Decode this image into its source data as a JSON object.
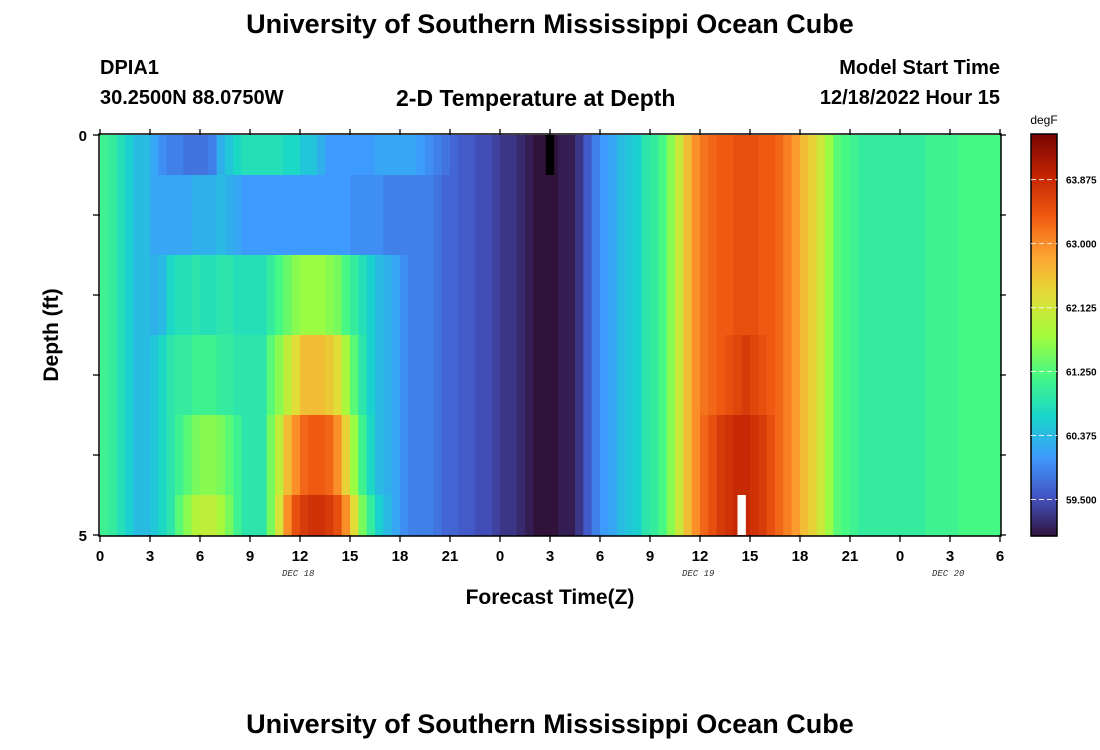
{
  "header": {
    "title": "University of Southern Mississippi Ocean Cube",
    "station_id": "DPIA1",
    "station_coords": "30.2500N  88.0750W",
    "subtitle": "2-D Temperature at Depth",
    "model_label": "Model Start Time",
    "model_time": "12/18/2022 Hour 15"
  },
  "footer": {
    "title": "University of Southern Mississippi Ocean Cube"
  },
  "chart_data": {
    "type": "heatmap",
    "title": "2-D Temperature at Depth",
    "xlabel": "Forecast Time(Z)",
    "ylabel": "Depth (ft)",
    "colorbar_unit": "degF",
    "colorbar_ticks": [
      "63.875",
      "63.000",
      "62.125",
      "61.250",
      "60.375",
      "59.500"
    ],
    "colorbar_tick_values": [
      63.875,
      63.0,
      62.125,
      61.25,
      60.375,
      59.5
    ],
    "color_range": [
      59.0,
      64.5
    ],
    "colormap": [
      "#30123b",
      "#4454c4",
      "#3e9bfe",
      "#18d6cb",
      "#46f884",
      "#a2fc3c",
      "#e1dd37",
      "#fea331",
      "#ef5911",
      "#c22402",
      "#7a0403"
    ],
    "x_tick_labels": [
      "0",
      "3",
      "6",
      "9",
      "12",
      "15",
      "18",
      "21",
      "0",
      "3",
      "6",
      "9",
      "12",
      "15",
      "18",
      "21",
      "0",
      "3",
      "6"
    ],
    "x_range_hours": [
      0,
      54
    ],
    "date_labels": [
      {
        "text": "DEC 18",
        "hour": 12
      },
      {
        "text": "DEC 19",
        "hour": 36
      },
      {
        "text": "DEC 20",
        "hour": 51
      }
    ],
    "y_tick_labels": [
      "0",
      "5"
    ],
    "y_range": [
      0,
      5
    ],
    "depth_levels": [
      "0-0.5",
      "0.5-1.5",
      "1.5-2.5",
      "2.5-3.5",
      "3.5-4.5",
      "4.5-5"
    ],
    "anomalies": [
      {
        "hour_start": 26.75,
        "hour_end": 27.25,
        "row": 0,
        "color": "#000000"
      },
      {
        "hour_start": 38.25,
        "hour_end": 38.75,
        "row": 5,
        "color": "#ffffff"
      }
    ],
    "values": [
      [
        61.1,
        61.0,
        60.8,
        60.6,
        60.4,
        60.4,
        60.2,
        60.0,
        59.9,
        59.9,
        59.8,
        59.8,
        59.8,
        59.9,
        60.3,
        60.5,
        60.7,
        60.8,
        60.8,
        60.8,
        60.8,
        60.8,
        60.7,
        60.7,
        60.5,
        60.5,
        60.3,
        60.1,
        60.1,
        60.1,
        60.1,
        60.1,
        60.1,
        60.2,
        60.2,
        60.2,
        60.2,
        60.2,
        60.1,
        60.0,
        59.9,
        59.8,
        59.7,
        59.6,
        59.6,
        59.5,
        59.5,
        59.4,
        59.3,
        59.3,
        59.2,
        59.1,
        59.0,
        59.0,
        59.0,
        59.1,
        59.1,
        59.3,
        59.6,
        59.9,
        60.1,
        60.2,
        60.4,
        60.5,
        60.6,
        60.9,
        61.0,
        61.2,
        61.6,
        62.1,
        62.6,
        63.0,
        63.2,
        63.3,
        63.4,
        63.4,
        63.5,
        63.5,
        63.5,
        63.4,
        63.4,
        63.3,
        63.1,
        62.9,
        62.6,
        62.4,
        62.1,
        61.7,
        61.3,
        61.2,
        61.1,
        61.0,
        61.0,
        61.0,
        61.0,
        61.0,
        61.0,
        61.0,
        61.0,
        61.1,
        61.1,
        61.1,
        61.1,
        61.2,
        61.2,
        61.2,
        61.2,
        61.2
      ],
      [
        61.1,
        61.0,
        60.8,
        60.6,
        60.4,
        60.4,
        60.2,
        60.2,
        60.2,
        60.2,
        60.2,
        60.3,
        60.3,
        60.3,
        60.4,
        60.3,
        60.2,
        60.1,
        60.1,
        60.1,
        60.1,
        60.1,
        60.1,
        60.1,
        60.1,
        60.1,
        60.1,
        60.1,
        60.1,
        60.1,
        60.0,
        60.0,
        60.0,
        60.0,
        59.9,
        59.9,
        59.9,
        59.9,
        59.9,
        59.9,
        59.8,
        59.7,
        59.7,
        59.6,
        59.6,
        59.5,
        59.5,
        59.4,
        59.3,
        59.3,
        59.2,
        59.1,
        59.0,
        59.0,
        59.0,
        59.1,
        59.1,
        59.3,
        59.6,
        59.9,
        60.1,
        60.2,
        60.4,
        60.5,
        60.6,
        60.9,
        61.0,
        61.2,
        61.6,
        62.1,
        62.6,
        63.0,
        63.2,
        63.3,
        63.4,
        63.4,
        63.5,
        63.5,
        63.5,
        63.4,
        63.4,
        63.3,
        63.1,
        62.9,
        62.6,
        62.4,
        62.1,
        61.7,
        61.3,
        61.2,
        61.1,
        61.0,
        61.0,
        61.0,
        61.0,
        61.0,
        61.0,
        61.0,
        61.0,
        61.1,
        61.1,
        61.1,
        61.1,
        61.2,
        61.2,
        61.2,
        61.2,
        61.2
      ],
      [
        61.1,
        61.0,
        60.8,
        60.6,
        60.4,
        60.4,
        60.3,
        60.4,
        60.7,
        60.8,
        60.8,
        60.9,
        60.8,
        60.8,
        60.9,
        60.9,
        60.8,
        60.8,
        60.8,
        60.8,
        61.0,
        61.2,
        61.4,
        61.6,
        61.7,
        61.7,
        61.7,
        61.6,
        61.5,
        61.2,
        61.0,
        60.8,
        60.6,
        60.4,
        60.3,
        60.2,
        60.0,
        59.9,
        59.9,
        59.9,
        59.8,
        59.7,
        59.7,
        59.6,
        59.6,
        59.5,
        59.5,
        59.4,
        59.3,
        59.3,
        59.2,
        59.1,
        59.0,
        59.0,
        59.0,
        59.1,
        59.1,
        59.3,
        59.6,
        59.9,
        60.1,
        60.2,
        60.4,
        60.5,
        60.6,
        60.9,
        61.0,
        61.2,
        61.6,
        62.1,
        62.6,
        63.0,
        63.2,
        63.3,
        63.4,
        63.4,
        63.5,
        63.5,
        63.5,
        63.4,
        63.4,
        63.3,
        63.1,
        62.9,
        62.6,
        62.4,
        62.1,
        61.7,
        61.3,
        61.2,
        61.1,
        61.0,
        61.0,
        61.0,
        61.0,
        61.0,
        61.0,
        61.0,
        61.0,
        61.1,
        61.1,
        61.1,
        61.1,
        61.2,
        61.2,
        61.2,
        61.2,
        61.2
      ],
      [
        61.1,
        61.0,
        60.8,
        60.6,
        60.4,
        60.4,
        60.5,
        60.7,
        60.9,
        61.0,
        61.0,
        61.1,
        61.1,
        61.1,
        61.0,
        61.0,
        60.9,
        60.9,
        60.9,
        60.9,
        61.3,
        61.6,
        62.0,
        62.3,
        62.6,
        62.6,
        62.6,
        62.5,
        62.3,
        61.8,
        61.3,
        60.9,
        60.6,
        60.4,
        60.3,
        60.2,
        60.0,
        59.9,
        59.9,
        59.9,
        59.8,
        59.7,
        59.7,
        59.6,
        59.6,
        59.5,
        59.5,
        59.4,
        59.3,
        59.3,
        59.2,
        59.1,
        59.0,
        59.0,
        59.0,
        59.1,
        59.1,
        59.3,
        59.6,
        59.9,
        60.1,
        60.2,
        60.4,
        60.5,
        60.6,
        60.9,
        61.0,
        61.2,
        61.6,
        62.1,
        62.6,
        63.0,
        63.2,
        63.3,
        63.4,
        63.5,
        63.6,
        63.7,
        63.6,
        63.5,
        63.4,
        63.3,
        63.1,
        62.9,
        62.6,
        62.4,
        62.1,
        61.7,
        61.3,
        61.2,
        61.1,
        61.0,
        61.0,
        61.0,
        61.0,
        61.0,
        61.0,
        61.0,
        61.0,
        61.1,
        61.1,
        61.1,
        61.1,
        61.2,
        61.2,
        61.2,
        61.2,
        61.2
      ],
      [
        61.1,
        61.0,
        60.8,
        60.6,
        60.4,
        60.4,
        60.5,
        60.7,
        60.9,
        61.1,
        61.3,
        61.5,
        61.6,
        61.6,
        61.5,
        61.3,
        61.1,
        60.9,
        60.9,
        60.9,
        61.5,
        62.0,
        62.6,
        63.0,
        63.3,
        63.4,
        63.4,
        63.3,
        63.0,
        62.4,
        61.7,
        61.1,
        60.7,
        60.4,
        60.3,
        60.2,
        60.0,
        59.9,
        59.9,
        59.9,
        59.8,
        59.7,
        59.7,
        59.6,
        59.6,
        59.5,
        59.5,
        59.4,
        59.3,
        59.3,
        59.2,
        59.1,
        59.0,
        59.0,
        59.0,
        59.1,
        59.1,
        59.3,
        59.6,
        59.9,
        60.1,
        60.2,
        60.4,
        60.5,
        60.6,
        60.9,
        61.0,
        61.2,
        61.6,
        62.1,
        62.6,
        63.0,
        63.3,
        63.5,
        63.7,
        63.8,
        63.9,
        63.9,
        63.8,
        63.7,
        63.5,
        63.3,
        63.1,
        62.9,
        62.6,
        62.4,
        62.1,
        61.7,
        61.3,
        61.2,
        61.1,
        61.0,
        61.0,
        61.0,
        61.0,
        61.0,
        61.0,
        61.0,
        61.0,
        61.1,
        61.1,
        61.1,
        61.1,
        61.2,
        61.2,
        61.2,
        61.2,
        61.2
      ],
      [
        61.1,
        61.0,
        60.8,
        60.6,
        60.4,
        60.4,
        60.5,
        60.7,
        60.9,
        61.3,
        61.6,
        61.9,
        62.0,
        62.0,
        61.8,
        61.5,
        61.1,
        60.9,
        60.9,
        60.9,
        61.5,
        62.2,
        63.0,
        63.5,
        63.7,
        63.8,
        63.8,
        63.7,
        63.5,
        63.0,
        62.3,
        61.5,
        61.0,
        60.6,
        60.4,
        60.2,
        60.0,
        59.9,
        59.9,
        59.9,
        59.8,
        59.7,
        59.7,
        59.6,
        59.6,
        59.5,
        59.5,
        59.4,
        59.3,
        59.3,
        59.2,
        59.1,
        59.0,
        59.0,
        59.0,
        59.1,
        59.1,
        59.3,
        59.6,
        59.9,
        60.1,
        60.2,
        60.4,
        60.5,
        60.6,
        60.9,
        61.0,
        61.2,
        61.6,
        62.1,
        62.6,
        63.0,
        63.3,
        63.5,
        63.7,
        63.8,
        63.9,
        63.9,
        63.8,
        63.7,
        63.5,
        63.3,
        63.1,
        62.9,
        62.6,
        62.4,
        62.1,
        61.7,
        61.3,
        61.2,
        61.1,
        61.0,
        61.0,
        61.0,
        61.0,
        61.0,
        61.0,
        61.0,
        61.0,
        61.1,
        61.1,
        61.1,
        61.1,
        61.2,
        61.2,
        61.2,
        61.2,
        61.2
      ]
    ]
  }
}
